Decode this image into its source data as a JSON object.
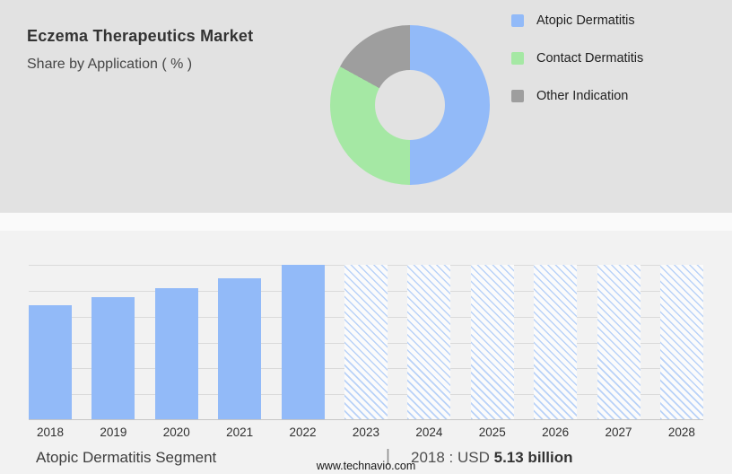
{
  "header": {
    "title": "Eczema Therapeutics Market",
    "subtitle": "Share by Application ( % )"
  },
  "legend": [
    {
      "label": "Atopic Dermatitis",
      "color": "#92baf8",
      "icon": "legend-swatch-atopic-dermatitis"
    },
    {
      "label": "Contact Dermatitis",
      "color": "#a5e8a4",
      "icon": "legend-swatch-contact-dermatitis"
    },
    {
      "label": "Other Indication",
      "color": "#9e9e9e",
      "icon": "legend-swatch-other-indication"
    }
  ],
  "chart_data": [
    {
      "type": "pie",
      "donut": true,
      "title": "Share by Application ( % )",
      "labels": [
        "Atopic Dermatitis",
        "Contact Dermatitis",
        "Other Indication"
      ],
      "values": [
        50,
        33,
        17
      ],
      "colors": [
        "#92baf8",
        "#a5e8a4",
        "#9e9e9e"
      ],
      "legend_position": "right"
    },
    {
      "type": "bar",
      "categories": [
        "2018",
        "2019",
        "2020",
        "2021",
        "2022",
        "2023",
        "2024",
        "2025",
        "2026",
        "2027",
        "2028"
      ],
      "values": [
        5.13,
        5.5,
        5.9,
        6.35,
        6.96,
        null,
        null,
        null,
        null,
        null,
        null
      ],
      "actual_years": [
        "2018",
        "2019",
        "2020",
        "2021",
        "2022"
      ],
      "forecast_years": [
        "2023",
        "2024",
        "2025",
        "2026",
        "2027",
        "2028"
      ],
      "bar_color": "#92baf8",
      "hatch_color": "#b9d2f8",
      "grid": true,
      "ylim": [
        0,
        6.96
      ],
      "xlabel": "",
      "ylabel": ""
    }
  ],
  "footer": {
    "segment_label": "Atopic Dermatitis Segment",
    "separator": "|",
    "value_prefix": "2018 : USD",
    "value_bold": "5.13 billion",
    "website": "www.technavio.com"
  }
}
